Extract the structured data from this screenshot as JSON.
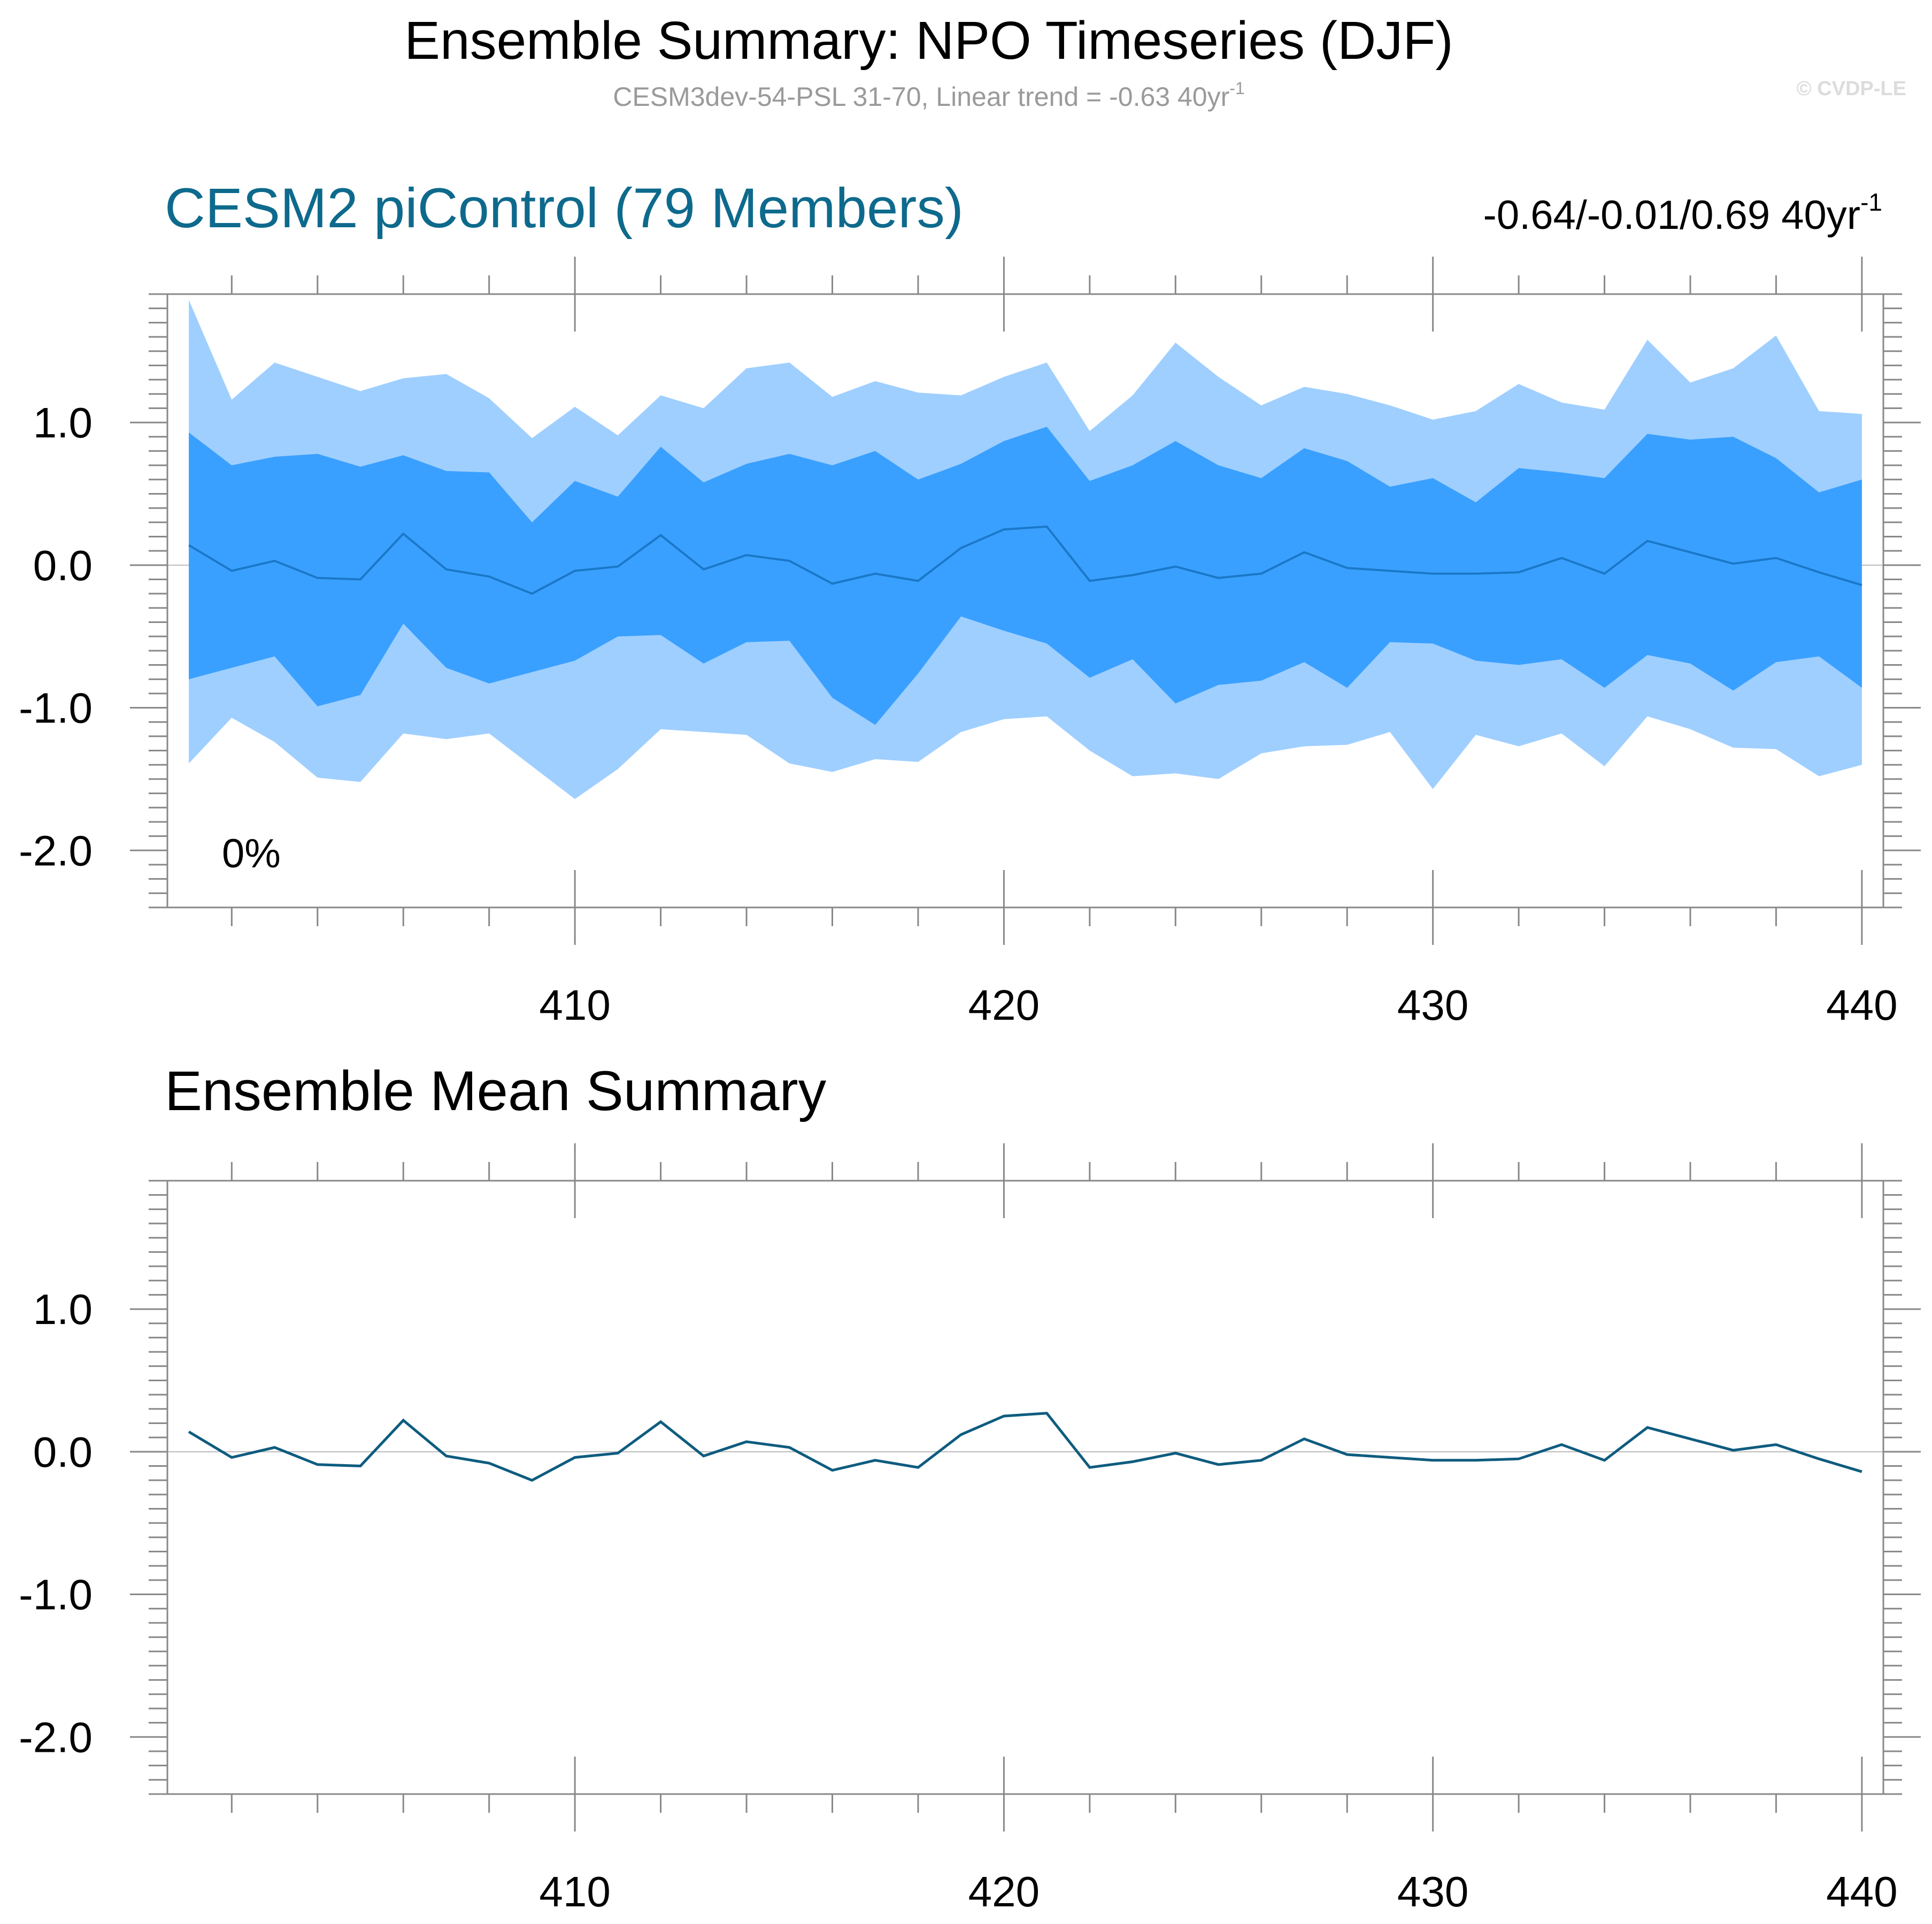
{
  "title": "Ensemble Summary: NPO Timeseries (DJF)",
  "subtitle": {
    "text": "CESM3dev-54-PSL 31-70, Linear trend = -0.63 40yr",
    "exponent": "-1"
  },
  "watermark": "© CVDP-LE",
  "colors": {
    "outer_band": "#9fcfff",
    "inner_band": "#3aa0ff",
    "median_line": "#1a78c8",
    "mean_line": "#0e5c7f",
    "panel_title": "#0e6a8c"
  },
  "chart_data": [
    {
      "type": "area",
      "title": "CESM2 piControl (79 Members)",
      "stats": {
        "text": "-0.64/-0.01/0.69 40yr",
        "exponent": "-1"
      },
      "annotation": "0%",
      "x": [
        401,
        402,
        403,
        404,
        405,
        406,
        407,
        408,
        409,
        410,
        411,
        412,
        413,
        414,
        415,
        416,
        417,
        418,
        419,
        420,
        421,
        422,
        423,
        424,
        425,
        426,
        427,
        428,
        429,
        430,
        431,
        432,
        433,
        434,
        435,
        436,
        437,
        438,
        439,
        440
      ],
      "xlim": [
        400.5,
        440.5
      ],
      "ylim": [
        -2.4,
        1.9
      ],
      "x_ticks": [
        410,
        420,
        430,
        440
      ],
      "y_ticks": [
        1.0,
        0.0,
        -1.0,
        -2.0
      ],
      "y_tick_labels": [
        "1.0",
        "0.0",
        "-1.0",
        "-2.0"
      ],
      "grid": false,
      "series": [
        {
          "role": "max",
          "values": [
            1.86,
            1.16,
            1.42,
            1.32,
            1.22,
            1.31,
            1.34,
            1.17,
            0.89,
            1.11,
            0.91,
            1.19,
            1.1,
            1.38,
            1.42,
            1.18,
            1.29,
            1.21,
            1.19,
            1.32,
            1.42,
            0.94,
            1.19,
            1.56,
            1.32,
            1.12,
            1.25,
            1.2,
            1.12,
            1.02,
            1.08,
            1.27,
            1.14,
            1.09,
            1.58,
            1.28,
            1.38,
            1.61,
            1.08,
            1.06
          ]
        },
        {
          "role": "p90",
          "values": [
            0.93,
            0.7,
            0.76,
            0.78,
            0.69,
            0.77,
            0.66,
            0.65,
            0.3,
            0.59,
            0.48,
            0.83,
            0.58,
            0.71,
            0.78,
            0.7,
            0.8,
            0.6,
            0.71,
            0.87,
            0.97,
            0.59,
            0.7,
            0.87,
            0.7,
            0.61,
            0.82,
            0.73,
            0.55,
            0.61,
            0.44,
            0.68,
            0.65,
            0.61,
            0.92,
            0.88,
            0.9,
            0.75,
            0.51,
            0.6
          ]
        },
        {
          "role": "median",
          "values": [
            0.14,
            -0.04,
            0.03,
            -0.09,
            -0.1,
            0.22,
            -0.03,
            -0.08,
            -0.2,
            -0.04,
            -0.01,
            0.21,
            -0.03,
            0.07,
            0.03,
            -0.13,
            -0.06,
            -0.11,
            0.12,
            0.25,
            0.27,
            -0.11,
            -0.07,
            -0.01,
            -0.09,
            -0.06,
            0.09,
            -0.02,
            -0.04,
            -0.06,
            -0.06,
            -0.05,
            0.05,
            -0.06,
            0.17,
            0.09,
            0.01,
            0.05,
            -0.05,
            -0.14
          ]
        },
        {
          "role": "p10",
          "values": [
            -0.8,
            -0.72,
            -0.64,
            -0.99,
            -0.91,
            -0.41,
            -0.72,
            -0.83,
            -0.75,
            -0.67,
            -0.5,
            -0.49,
            -0.69,
            -0.54,
            -0.53,
            -0.93,
            -1.12,
            -0.76,
            -0.36,
            -0.46,
            -0.55,
            -0.79,
            -0.66,
            -0.97,
            -0.84,
            -0.81,
            -0.68,
            -0.86,
            -0.54,
            -0.55,
            -0.67,
            -0.7,
            -0.66,
            -0.86,
            -0.63,
            -0.69,
            -0.88,
            -0.68,
            -0.64,
            -0.86
          ]
        },
        {
          "role": "min",
          "values": [
            -1.39,
            -1.07,
            -1.24,
            -1.49,
            -1.52,
            -1.18,
            -1.22,
            -1.18,
            -1.41,
            -1.64,
            -1.43,
            -1.15,
            -1.17,
            -1.19,
            -1.39,
            -1.45,
            -1.36,
            -1.38,
            -1.17,
            -1.08,
            -1.06,
            -1.3,
            -1.48,
            -1.46,
            -1.5,
            -1.32,
            -1.27,
            -1.26,
            -1.17,
            -1.57,
            -1.19,
            -1.27,
            -1.18,
            -1.41,
            -1.06,
            -1.15,
            -1.28,
            -1.29,
            -1.48,
            -1.4
          ]
        }
      ]
    },
    {
      "type": "line",
      "title": "Ensemble Mean Summary",
      "x": [
        401,
        402,
        403,
        404,
        405,
        406,
        407,
        408,
        409,
        410,
        411,
        412,
        413,
        414,
        415,
        416,
        417,
        418,
        419,
        420,
        421,
        422,
        423,
        424,
        425,
        426,
        427,
        428,
        429,
        430,
        431,
        432,
        433,
        434,
        435,
        436,
        437,
        438,
        439,
        440
      ],
      "xlim": [
        400.5,
        440.5
      ],
      "ylim": [
        -2.4,
        1.9
      ],
      "x_ticks": [
        410,
        420,
        430,
        440
      ],
      "y_ticks": [
        1.0,
        0.0,
        -1.0,
        -2.0
      ],
      "y_tick_labels": [
        "1.0",
        "0.0",
        "-1.0",
        "-2.0"
      ],
      "grid": false,
      "series": [
        {
          "role": "mean",
          "values": [
            0.14,
            -0.04,
            0.03,
            -0.09,
            -0.1,
            0.22,
            -0.03,
            -0.08,
            -0.2,
            -0.04,
            -0.01,
            0.21,
            -0.03,
            0.07,
            0.03,
            -0.13,
            -0.06,
            -0.11,
            0.12,
            0.25,
            0.27,
            -0.11,
            -0.07,
            -0.01,
            -0.09,
            -0.06,
            0.09,
            -0.02,
            -0.04,
            -0.06,
            -0.06,
            -0.05,
            0.05,
            -0.06,
            0.17,
            0.09,
            0.01,
            0.05,
            -0.05,
            -0.14
          ]
        }
      ]
    }
  ]
}
